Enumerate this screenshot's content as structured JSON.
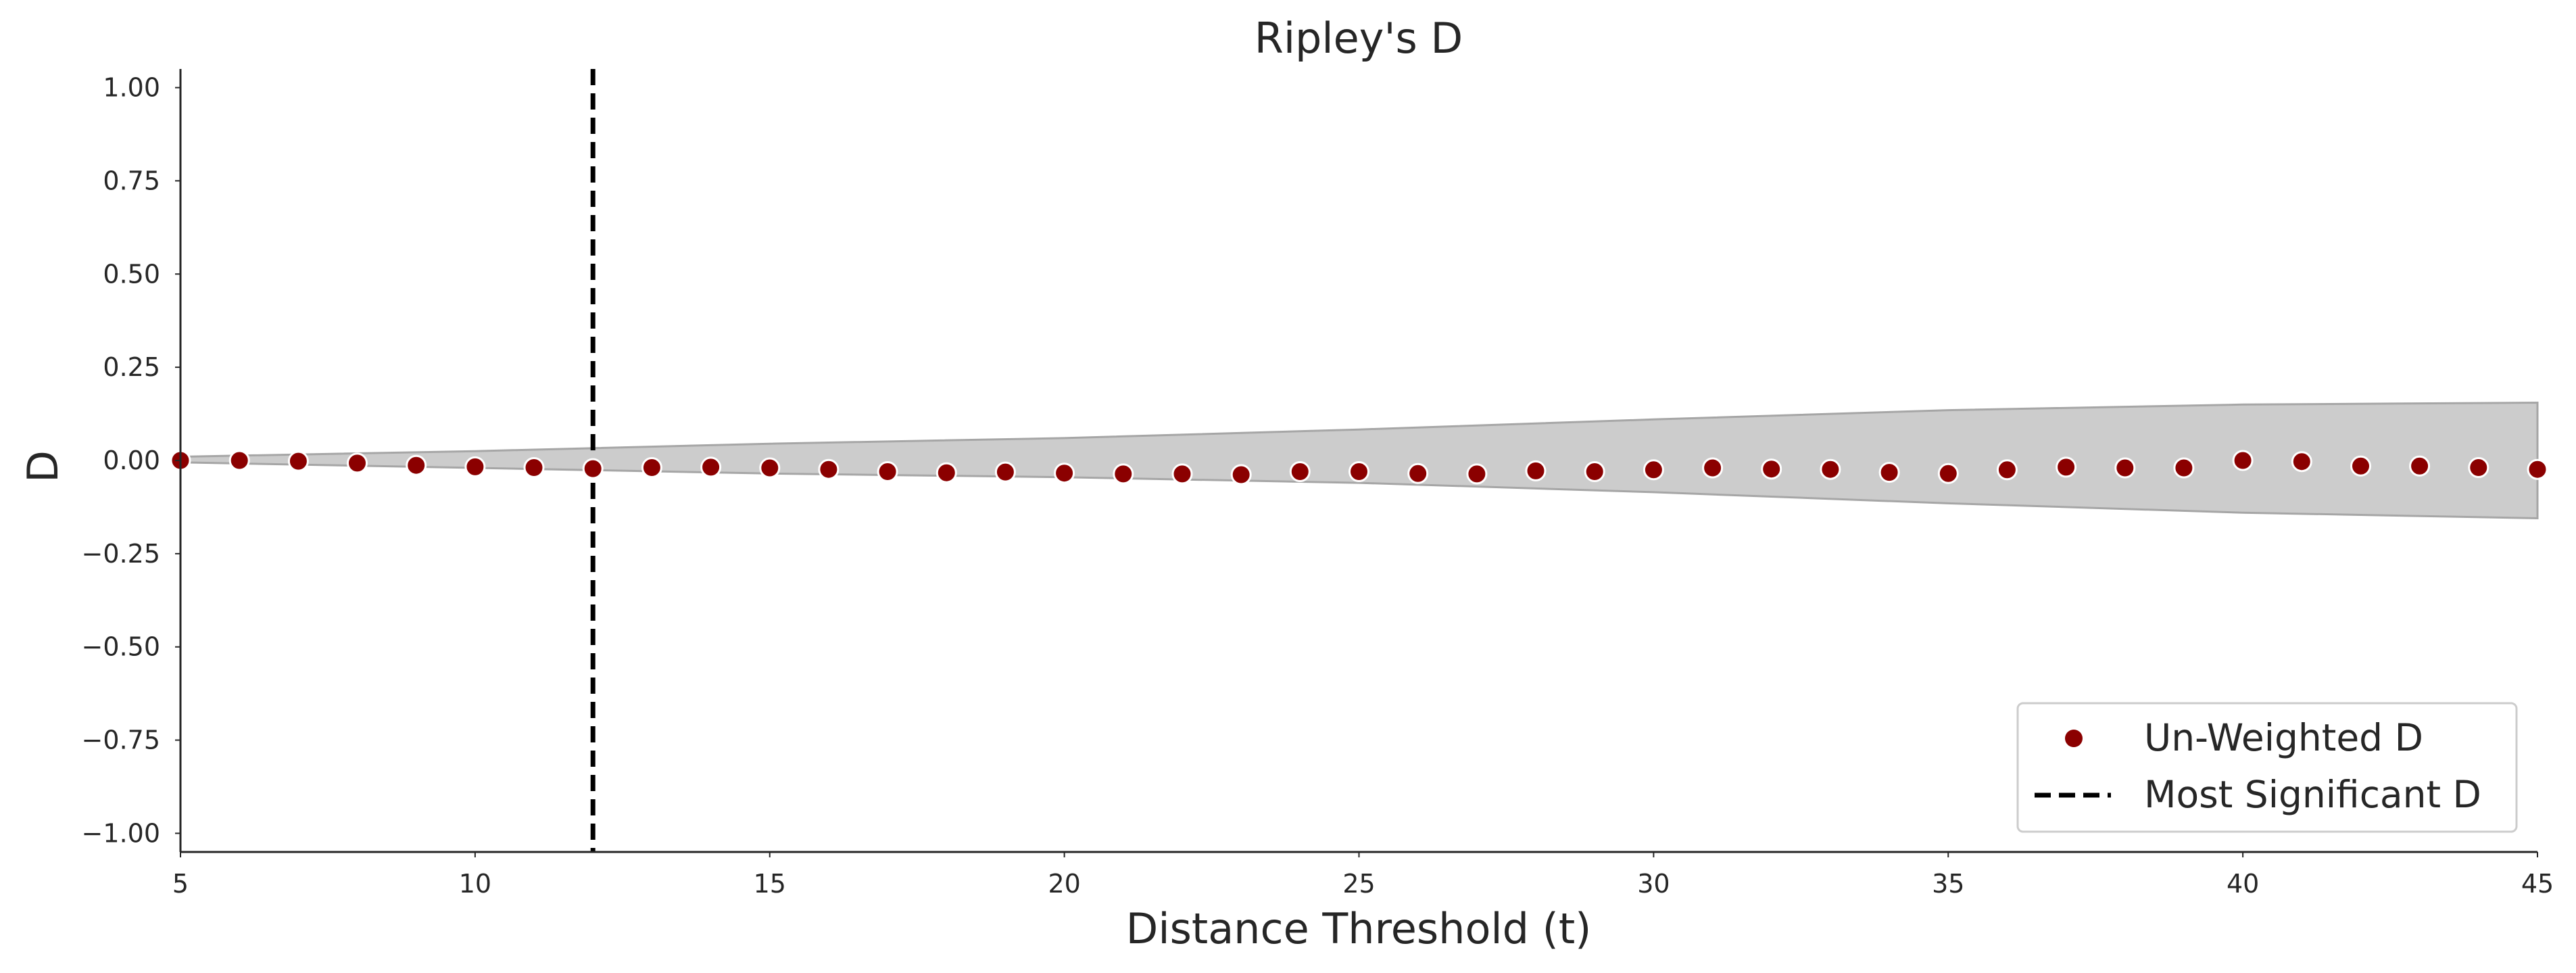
{
  "chart_data": {
    "type": "scatter",
    "title": "Ripley's D",
    "xlabel": "Distance Threshold (t)",
    "ylabel": "D",
    "xlim": [
      5,
      45
    ],
    "ylim": [
      -1.05,
      1.05
    ],
    "xticks": [
      5,
      10,
      15,
      20,
      25,
      30,
      35,
      40,
      45
    ],
    "yticks": [
      1.0,
      0.75,
      0.5,
      0.25,
      0.0,
      -0.25,
      -0.5,
      -0.75,
      -1.0
    ],
    "xtick_labels": [
      "5",
      "10",
      "15",
      "20",
      "25",
      "30",
      "35",
      "40",
      "45"
    ],
    "ytick_labels": [
      "1.00",
      "0.75",
      "0.50",
      "0.25",
      "0.00",
      "−0.25",
      "−0.50",
      "−0.75",
      "−1.00"
    ],
    "grid": false,
    "legend_position": "bottom-right",
    "series": [
      {
        "name": "Un-Weighted D",
        "kind": "scatter",
        "color": "#8b0000",
        "x": [
          5,
          6,
          7,
          8,
          9,
          10,
          11,
          12,
          13,
          14,
          15,
          16,
          17,
          18,
          19,
          20,
          21,
          22,
          23,
          24,
          25,
          26,
          27,
          28,
          29,
          30,
          31,
          32,
          33,
          34,
          35,
          36,
          37,
          38,
          39,
          40,
          41,
          42,
          43,
          44,
          45
        ],
        "y": [
          0.0,
          0.0,
          -0.002,
          -0.007,
          -0.013,
          -0.017,
          -0.019,
          -0.022,
          -0.019,
          -0.018,
          -0.02,
          -0.024,
          -0.03,
          -0.033,
          -0.031,
          -0.034,
          -0.036,
          -0.036,
          -0.038,
          -0.03,
          -0.03,
          -0.035,
          -0.036,
          -0.028,
          -0.03,
          -0.025,
          -0.02,
          -0.023,
          -0.024,
          -0.032,
          -0.035,
          -0.025,
          -0.018,
          -0.02,
          -0.02,
          0.0,
          -0.003,
          -0.015,
          -0.015,
          -0.019,
          -0.024
        ]
      },
      {
        "name": "Most Significant D",
        "kind": "vline",
        "color": "#000000",
        "x": 12
      }
    ],
    "envelope": {
      "color": "#cccccc",
      "edge_color": "#a6a6a6",
      "x": [
        5,
        10,
        15,
        20,
        25,
        30,
        35,
        40,
        45
      ],
      "upper": [
        0.01,
        0.025,
        0.045,
        0.06,
        0.083,
        0.11,
        0.135,
        0.15,
        0.155
      ],
      "lower": [
        -0.005,
        -0.02,
        -0.035,
        -0.045,
        -0.06,
        -0.085,
        -0.115,
        -0.14,
        -0.155
      ]
    }
  }
}
